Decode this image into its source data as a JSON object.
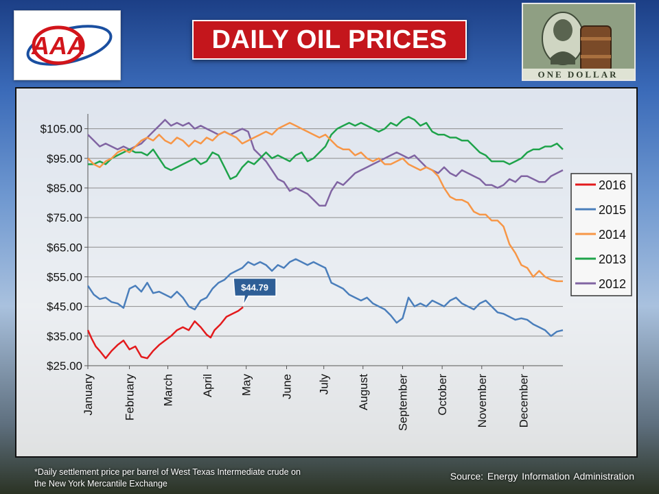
{
  "header": {
    "title": "DAILY OIL PRICES",
    "logo_text": "AAA",
    "image_caption": "ONE DOLLAR"
  },
  "footer": {
    "footnote_line1": "*Daily settlement price per barrel of West Texas Intermediate crude on",
    "footnote_line2": "the New York Mercantile Exchange",
    "source": "Source: Energy Information  Administration"
  },
  "colors": {
    "title_bg": "#c4161c",
    "series_2016": "#e31a1c",
    "series_2015": "#4a7ebb",
    "series_2014": "#f79646",
    "series_2013": "#1ea34a",
    "series_2012": "#8064a2"
  },
  "chart_data": {
    "type": "line",
    "title": "DAILY OIL PRICES",
    "xlabel": "",
    "ylabel": "",
    "xlim": [
      0,
      12
    ],
    "ylim": [
      25,
      110
    ],
    "grid": true,
    "legend_position": "right",
    "y_ticks": [
      25,
      35,
      45,
      55,
      65,
      75,
      85,
      95,
      105
    ],
    "y_tick_labels": [
      "$25.00",
      "$35.00",
      "$45.00",
      "$55.00",
      "$65.00",
      "$75.00",
      "$85.00",
      "$95.00",
      "$105.00"
    ],
    "month_labels": [
      "January",
      "February",
      "March",
      "April",
      "May",
      "June",
      "July",
      "August",
      "September",
      "October",
      "November",
      "December"
    ],
    "month_positions": [
      0,
      1.05,
      2.02,
      3.02,
      4.0,
      5.02,
      5.96,
      6.95,
      7.95,
      8.95,
      9.95,
      11.0
    ],
    "annotation": {
      "label": "$44.79",
      "x": 3.92,
      "y": 44.79
    },
    "series": [
      {
        "name": "2016",
        "color": "#e31a1c",
        "x": [
          0,
          0.1,
          0.2,
          0.3,
          0.45,
          0.6,
          0.75,
          0.9,
          1.05,
          1.2,
          1.35,
          1.5,
          1.65,
          1.8,
          1.95,
          2.1,
          2.25,
          2.4,
          2.55,
          2.7,
          2.85,
          3.0,
          3.1,
          3.2,
          3.35,
          3.5,
          3.65,
          3.8,
          3.92
        ],
        "values": [
          37,
          34,
          31.5,
          30,
          27.5,
          30,
          32,
          33.5,
          30.5,
          31.5,
          28,
          27.5,
          30,
          32,
          33.5,
          35,
          37,
          38,
          37,
          40,
          38,
          35.5,
          34.5,
          37,
          39,
          41.5,
          42.5,
          43.5,
          44.79
        ]
      },
      {
        "name": "2015",
        "color": "#4a7ebb",
        "x": [
          0,
          0.15,
          0.3,
          0.45,
          0.6,
          0.75,
          0.9,
          1.05,
          1.2,
          1.35,
          1.5,
          1.65,
          1.8,
          1.95,
          2.1,
          2.25,
          2.4,
          2.55,
          2.7,
          2.85,
          3.0,
          3.15,
          3.3,
          3.45,
          3.6,
          3.75,
          3.9,
          4.05,
          4.2,
          4.35,
          4.5,
          4.65,
          4.8,
          4.95,
          5.1,
          5.25,
          5.4,
          5.55,
          5.7,
          5.85,
          6.0,
          6.15,
          6.3,
          6.45,
          6.6,
          6.75,
          6.9,
          7.05,
          7.2,
          7.35,
          7.5,
          7.65,
          7.8,
          7.95,
          8.1,
          8.25,
          8.4,
          8.55,
          8.7,
          8.85,
          9.0,
          9.15,
          9.3,
          9.45,
          9.6,
          9.75,
          9.9,
          10.05,
          10.2,
          10.35,
          10.5,
          10.65,
          10.8,
          10.95,
          11.1,
          11.25,
          11.4,
          11.55,
          11.7,
          11.85,
          12.0
        ],
        "values": [
          52,
          49,
          47.5,
          48,
          46.5,
          46,
          44.5,
          51,
          52,
          50,
          53,
          49.5,
          50,
          49,
          48,
          50,
          48,
          45,
          44,
          47,
          48,
          51,
          53,
          54,
          56,
          57,
          58,
          60,
          59,
          60,
          59,
          57,
          59,
          58,
          60,
          61,
          60,
          59,
          60,
          59,
          58,
          53,
          52,
          51,
          49,
          48,
          47,
          48,
          46,
          45,
          44,
          42,
          39.5,
          41,
          48,
          45,
          46,
          45,
          47,
          46,
          45,
          47,
          48,
          46,
          45,
          44,
          46,
          47,
          45,
          43,
          42.5,
          41.5,
          40.5,
          41,
          40.5,
          39,
          38,
          37,
          35,
          36.5,
          37
        ]
      },
      {
        "name": "2014",
        "color": "#f79646",
        "x": [
          0,
          0.15,
          0.3,
          0.45,
          0.6,
          0.75,
          0.9,
          1.05,
          1.2,
          1.35,
          1.5,
          1.65,
          1.8,
          1.95,
          2.1,
          2.25,
          2.4,
          2.55,
          2.7,
          2.85,
          3.0,
          3.15,
          3.3,
          3.45,
          3.6,
          3.75,
          3.9,
          4.05,
          4.2,
          4.35,
          4.5,
          4.65,
          4.8,
          4.95,
          5.1,
          5.25,
          5.4,
          5.55,
          5.7,
          5.85,
          6.0,
          6.15,
          6.3,
          6.45,
          6.6,
          6.75,
          6.9,
          7.05,
          7.2,
          7.35,
          7.5,
          7.65,
          7.8,
          7.95,
          8.1,
          8.25,
          8.4,
          8.55,
          8.7,
          8.85,
          9.0,
          9.15,
          9.3,
          9.45,
          9.6,
          9.75,
          9.9,
          10.05,
          10.2,
          10.35,
          10.5,
          10.65,
          10.8,
          10.95,
          11.1,
          11.25,
          11.4,
          11.55,
          11.7,
          11.85,
          12.0
        ],
        "values": [
          95,
          93,
          92,
          94,
          95,
          97,
          98,
          97,
          99,
          101,
          102,
          101,
          103,
          101,
          100,
          102,
          101,
          99,
          101,
          100,
          102,
          101,
          103,
          104,
          103,
          102,
          100,
          101,
          102,
          103,
          104,
          103,
          105,
          106,
          107,
          106,
          105,
          104,
          103,
          102,
          103,
          101,
          99,
          98,
          98,
          96,
          97,
          95,
          94,
          95,
          93,
          93,
          94,
          95,
          93,
          92,
          91,
          92,
          91,
          89,
          85,
          82,
          81,
          81,
          80,
          77,
          76,
          76,
          74,
          74,
          72,
          66,
          63,
          59,
          58,
          55,
          57,
          55,
          54,
          53.5,
          53.5
        ]
      },
      {
        "name": "2013",
        "color": "#1ea34a",
        "x": [
          0,
          0.15,
          0.3,
          0.45,
          0.6,
          0.75,
          0.9,
          1.05,
          1.2,
          1.35,
          1.5,
          1.65,
          1.8,
          1.95,
          2.1,
          2.25,
          2.4,
          2.55,
          2.7,
          2.85,
          3.0,
          3.15,
          3.3,
          3.45,
          3.6,
          3.75,
          3.9,
          4.05,
          4.2,
          4.35,
          4.5,
          4.65,
          4.8,
          4.95,
          5.1,
          5.25,
          5.4,
          5.55,
          5.7,
          5.85,
          6.0,
          6.15,
          6.3,
          6.45,
          6.6,
          6.75,
          6.9,
          7.05,
          7.2,
          7.35,
          7.5,
          7.65,
          7.8,
          7.95,
          8.1,
          8.25,
          8.4,
          8.55,
          8.7,
          8.85,
          9.0,
          9.15,
          9.3,
          9.45,
          9.6,
          9.75,
          9.9,
          10.05,
          10.2,
          10.35,
          10.5,
          10.65,
          10.8,
          10.95,
          11.1,
          11.25,
          11.4,
          11.55,
          11.7,
          11.85,
          12.0
        ],
        "values": [
          93,
          93,
          94,
          93,
          95,
          96,
          97,
          98,
          97,
          97,
          96,
          98,
          95,
          92,
          91,
          92,
          93,
          94,
          95,
          93,
          94,
          97,
          96,
          92,
          88,
          89,
          92,
          94,
          93,
          95,
          97,
          95,
          96,
          95,
          94,
          96,
          97,
          94,
          95,
          97,
          99,
          103,
          105,
          106,
          107,
          106,
          107,
          106,
          105,
          104,
          105,
          107,
          106,
          108,
          109,
          108,
          106,
          107,
          104,
          103,
          103,
          102,
          102,
          101,
          101,
          99,
          97,
          96,
          94,
          94,
          94,
          93,
          94,
          95,
          97,
          98,
          98,
          99,
          99,
          100,
          98
        ]
      },
      {
        "name": "2012",
        "color": "#8064a2",
        "x": [
          0,
          0.15,
          0.3,
          0.45,
          0.6,
          0.75,
          0.9,
          1.05,
          1.2,
          1.35,
          1.5,
          1.65,
          1.8,
          1.95,
          2.1,
          2.25,
          2.4,
          2.55,
          2.7,
          2.85,
          3.0,
          3.15,
          3.3,
          3.45,
          3.6,
          3.75,
          3.9,
          4.05,
          4.2,
          4.35,
          4.5,
          4.65,
          4.8,
          4.95,
          5.1,
          5.25,
          5.4,
          5.55,
          5.7,
          5.85,
          6.0,
          6.15,
          6.3,
          6.45,
          6.6,
          6.75,
          6.9,
          7.05,
          7.2,
          7.35,
          7.5,
          7.65,
          7.8,
          7.95,
          8.1,
          8.25,
          8.4,
          8.55,
          8.7,
          8.85,
          9.0,
          9.15,
          9.3,
          9.45,
          9.6,
          9.75,
          9.9,
          10.05,
          10.2,
          10.35,
          10.5,
          10.65,
          10.8,
          10.95,
          11.1,
          11.25,
          11.4,
          11.55,
          11.7,
          11.85,
          12.0
        ],
        "values": [
          103,
          101,
          99,
          100,
          99,
          98,
          99,
          98,
          99,
          100,
          102,
          104,
          106,
          108,
          106,
          107,
          106,
          107,
          105,
          106,
          105,
          104,
          103,
          104,
          103,
          104,
          105,
          104,
          98,
          96,
          94,
          91,
          88,
          87,
          84,
          85,
          84,
          83,
          81,
          79,
          79,
          84,
          87,
          86,
          88,
          90,
          91,
          92,
          93,
          94,
          95,
          96,
          97,
          96,
          95,
          96,
          94,
          92,
          91,
          90,
          92,
          90,
          89,
          91,
          90,
          89,
          88,
          86,
          86,
          85,
          86,
          88,
          87,
          89,
          89,
          88,
          87,
          87,
          89,
          90,
          91
        ]
      }
    ]
  }
}
